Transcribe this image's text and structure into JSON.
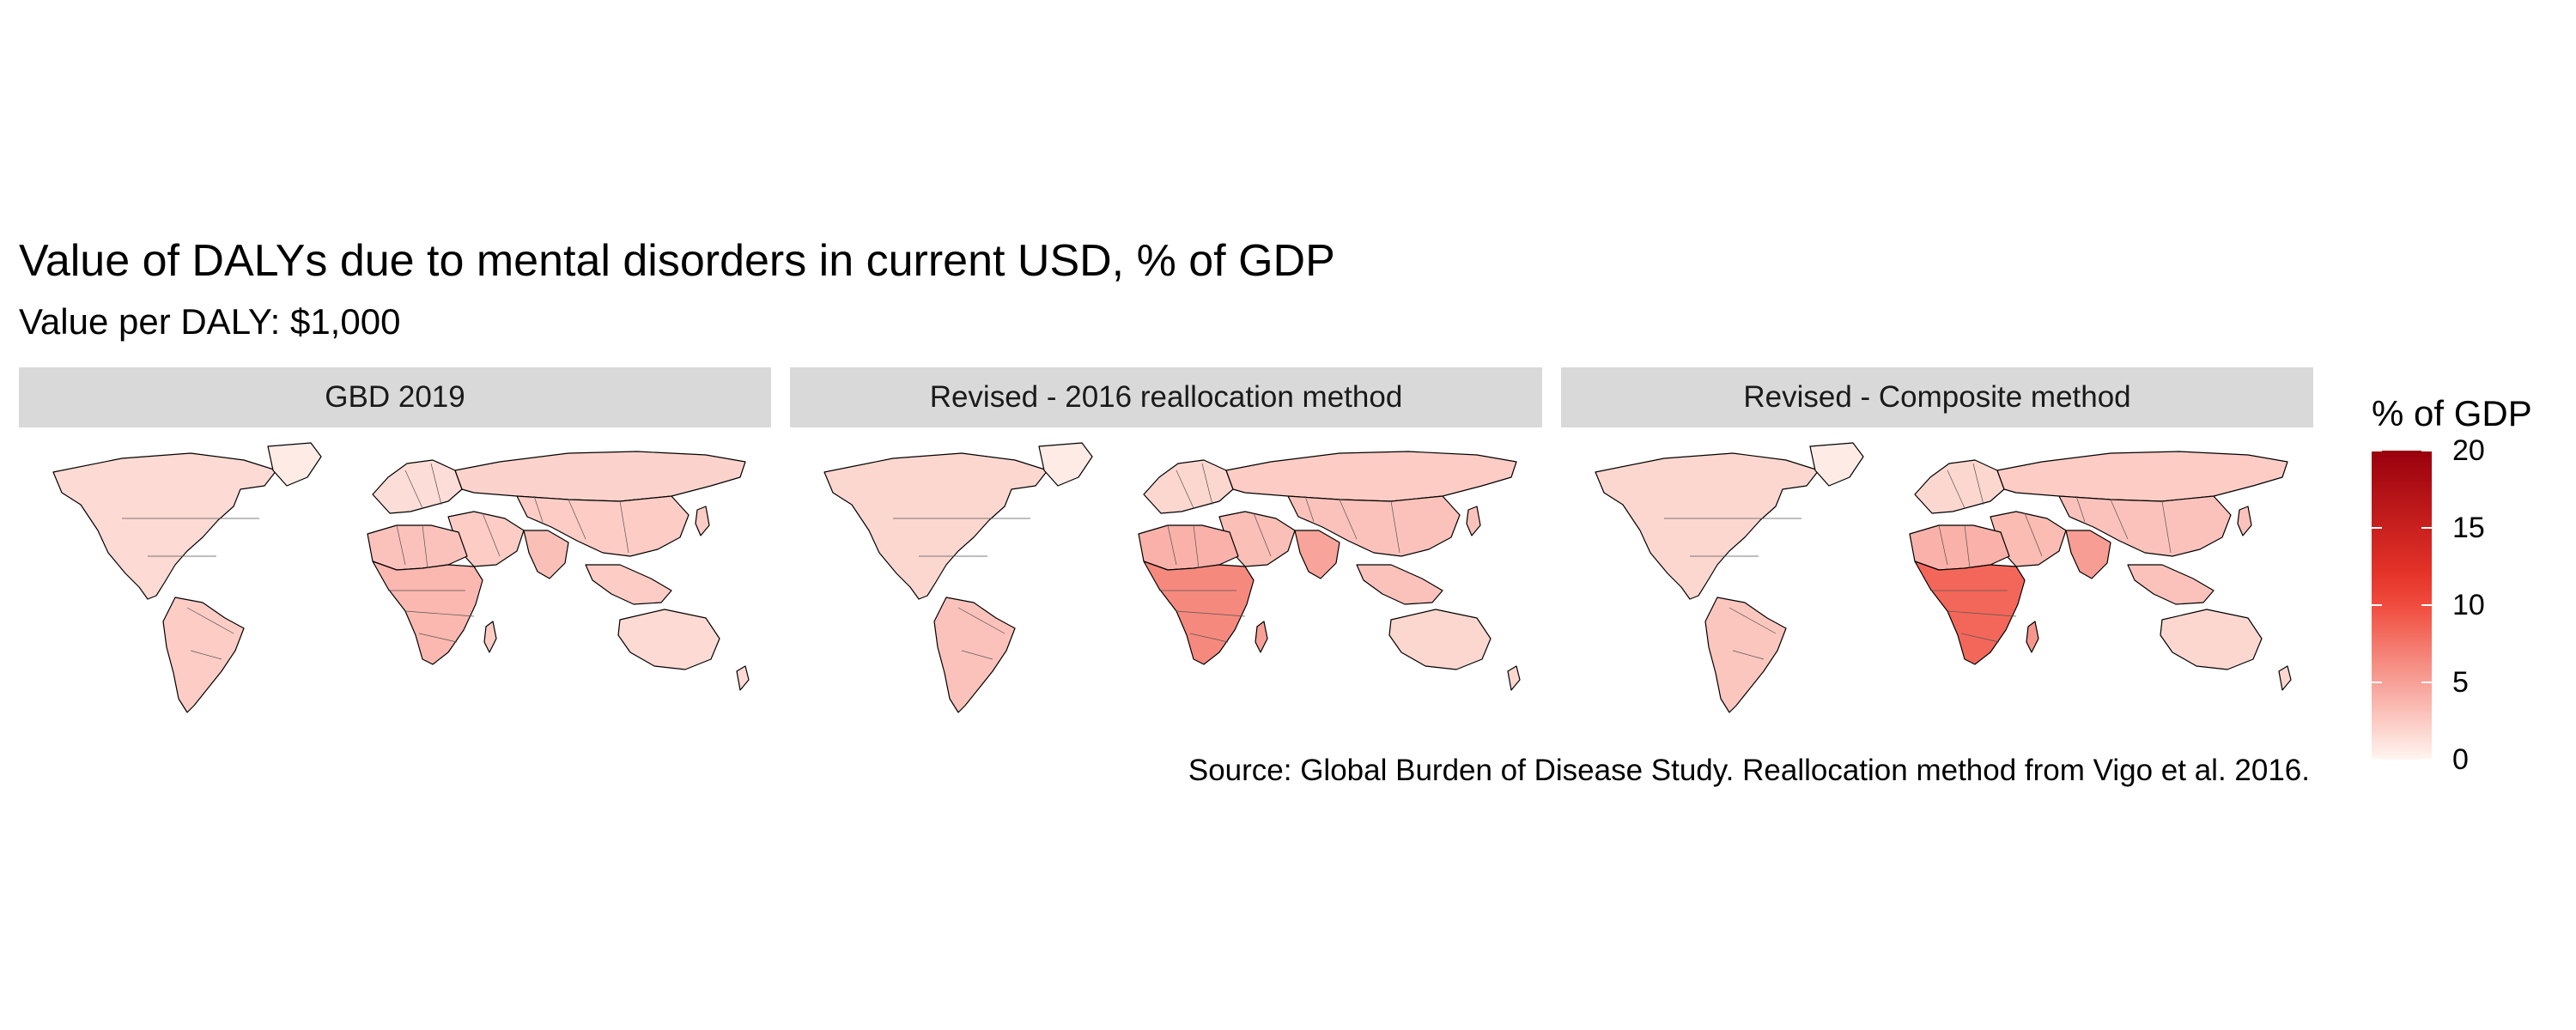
{
  "title": "Value of DALYs due to mental disorders in current USD, % of GDP",
  "subtitle": "Value per DALY: $1,000",
  "caption": "Source: Global Burden of Disease Study. Reallocation method from Vigo et al. 2016.",
  "panels": [
    {
      "label": "GBD 2019",
      "intensity": {
        "na": 0.08,
        "sa": 0.12,
        "eu": 0.07,
        "af": 0.15,
        "me": 0.12,
        "ru": 0.1,
        "as": 0.12,
        "sas": 0.16,
        "oc": 0.08,
        "gr": 0.03,
        "ssa": 0.18,
        "mad": 0.12
      }
    },
    {
      "label": "Revised - 2016 reallocation method",
      "intensity": {
        "na": 0.09,
        "sa": 0.15,
        "eu": 0.09,
        "af": 0.2,
        "me": 0.16,
        "ru": 0.12,
        "as": 0.15,
        "sas": 0.24,
        "oc": 0.09,
        "gr": 0.03,
        "ssa": 0.32,
        "mad": 0.25
      }
    },
    {
      "label": "Revised - Composite method",
      "intensity": {
        "na": 0.09,
        "sa": 0.14,
        "eu": 0.09,
        "af": 0.2,
        "me": 0.17,
        "ru": 0.12,
        "as": 0.15,
        "sas": 0.26,
        "oc": 0.09,
        "gr": 0.03,
        "ssa": 0.42,
        "mad": 0.28
      }
    }
  ],
  "legend": {
    "title": "% of GDP",
    "min": 0,
    "max": 20,
    "ticks": [
      "0",
      "5",
      "10",
      "15",
      "20"
    ],
    "color_low": "#fff5f0",
    "color_high": "#99000d"
  },
  "colors": {
    "strip_bg": "#d9d9d9",
    "border": "#000000"
  }
}
